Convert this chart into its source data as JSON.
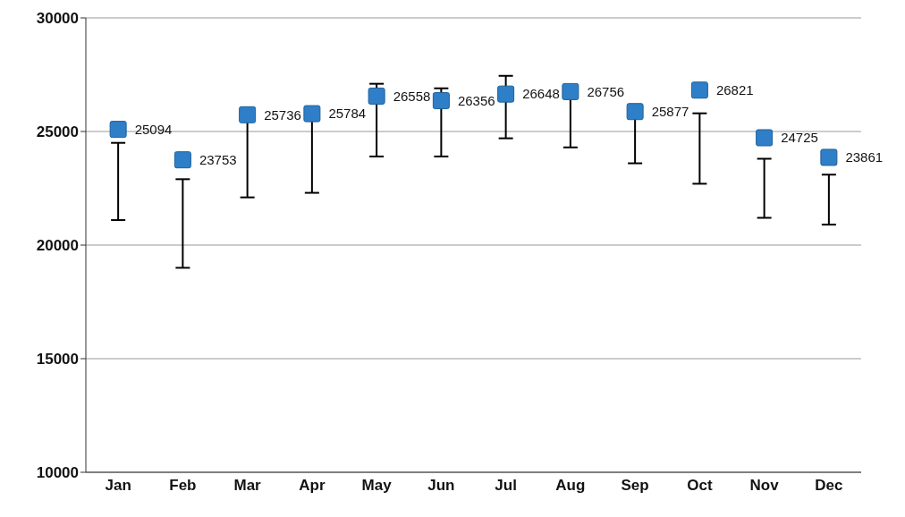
{
  "chart_data": {
    "type": "scatter",
    "categories": [
      "Jan",
      "Feb",
      "Mar",
      "Apr",
      "May",
      "Jun",
      "Jul",
      "Aug",
      "Sep",
      "Oct",
      "Nov",
      "Dec"
    ],
    "values": [
      25094,
      23753,
      25736,
      25784,
      26558,
      26356,
      26648,
      26756,
      25877,
      26821,
      24725,
      23861
    ],
    "errors": [
      [
        21100,
        24500
      ],
      [
        19000,
        22900
      ],
      [
        22100,
        25736
      ],
      [
        22300,
        25784
      ],
      [
        23900,
        27100
      ],
      [
        23900,
        26900
      ],
      [
        24700,
        27450
      ],
      [
        24300,
        26756
      ],
      [
        23600,
        25877
      ],
      [
        22700,
        25800
      ],
      [
        21200,
        23800
      ],
      [
        20900,
        23100
      ]
    ],
    "color": "#2e7fc8",
    "marker": "square",
    "data_labels": true,
    "ylim": [
      10000,
      30000
    ],
    "yticks": [
      10000,
      15000,
      20000,
      25000,
      30000
    ],
    "grid": "y"
  }
}
